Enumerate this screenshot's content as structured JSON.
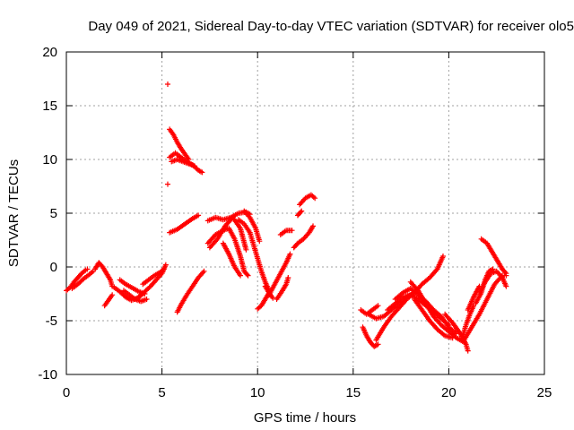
{
  "chart_data": {
    "type": "scatter",
    "title": "Day 049 of 2021, Sidereal Day-to-day VTEC variation (SDTVAR) for receiver olo5",
    "xlabel": "GPS time / hours",
    "ylabel": "SDTVAR / TECUs",
    "xlim": [
      0,
      25
    ],
    "ylim": [
      -10,
      20
    ],
    "xticks": [
      "0",
      "5",
      "10",
      "15",
      "20",
      "25"
    ],
    "yticks": [
      "-10",
      "-5",
      "0",
      "5",
      "10",
      "15",
      "20"
    ],
    "grid": true,
    "marker": "+",
    "color": "#ff0000",
    "segments": [
      [
        [
          0.0,
          -2.2
        ],
        [
          0.2,
          -1.9
        ],
        [
          0.4,
          -1.4
        ],
        [
          0.6,
          -1.0
        ],
        [
          0.8,
          -0.6
        ],
        [
          1.0,
          -0.3
        ],
        [
          1.1,
          -0.2
        ]
      ],
      [
        [
          0.3,
          -2.0
        ],
        [
          0.6,
          -1.6
        ],
        [
          0.9,
          -1.1
        ],
        [
          1.2,
          -0.7
        ],
        [
          1.4,
          -0.4
        ]
      ],
      [
        [
          1.5,
          -0.2
        ],
        [
          1.7,
          0.4
        ],
        [
          1.9,
          0.0
        ],
        [
          2.1,
          -0.6
        ],
        [
          2.3,
          -1.2
        ],
        [
          2.4,
          -1.8
        ]
      ],
      [
        [
          2.0,
          -3.6
        ],
        [
          2.2,
          -3.1
        ],
        [
          2.4,
          -2.6
        ]
      ],
      [
        [
          2.5,
          -1.9
        ],
        [
          2.8,
          -2.3
        ],
        [
          3.1,
          -2.8
        ],
        [
          3.4,
          -3.1
        ],
        [
          3.7,
          -2.9
        ],
        [
          4.0,
          -2.5
        ]
      ],
      [
        [
          2.8,
          -1.2
        ],
        [
          3.1,
          -1.6
        ],
        [
          3.5,
          -2.0
        ],
        [
          3.8,
          -2.3
        ],
        [
          4.1,
          -2.5
        ]
      ],
      [
        [
          3.0,
          -2.2
        ],
        [
          3.3,
          -2.6
        ],
        [
          3.6,
          -3.0
        ],
        [
          3.9,
          -3.2
        ],
        [
          4.2,
          -3.0
        ]
      ],
      [
        [
          3.8,
          -2.8
        ],
        [
          4.1,
          -2.3
        ],
        [
          4.4,
          -1.8
        ],
        [
          4.7,
          -1.2
        ],
        [
          5.0,
          -0.6
        ],
        [
          5.2,
          0.2
        ]
      ],
      [
        [
          4.0,
          -1.6
        ],
        [
          4.3,
          -1.2
        ],
        [
          4.6,
          -0.8
        ],
        [
          4.9,
          -0.5
        ],
        [
          5.1,
          -0.2
        ]
      ],
      [
        [
          5.3,
          17.0
        ]
      ],
      [
        [
          5.3,
          7.7
        ]
      ],
      [
        [
          5.4,
          12.8
        ],
        [
          5.6,
          12.3
        ],
        [
          5.8,
          11.6
        ],
        [
          6.0,
          11.0
        ],
        [
          6.2,
          10.5
        ],
        [
          6.4,
          10.0
        ]
      ],
      [
        [
          5.4,
          10.2
        ],
        [
          5.7,
          10.6
        ],
        [
          6.0,
          10.2
        ],
        [
          6.3,
          9.8
        ],
        [
          6.6,
          9.5
        ],
        [
          6.9,
          9.0
        ],
        [
          7.1,
          8.8
        ]
      ],
      [
        [
          5.5,
          9.8
        ],
        [
          5.8,
          10.0
        ],
        [
          6.1,
          9.8
        ],
        [
          6.4,
          9.6
        ],
        [
          6.7,
          9.4
        ]
      ],
      [
        [
          5.4,
          3.2
        ],
        [
          5.8,
          3.5
        ],
        [
          6.2,
          4.0
        ],
        [
          6.6,
          4.5
        ],
        [
          6.9,
          4.8
        ]
      ],
      [
        [
          5.8,
          -4.2
        ],
        [
          6.0,
          -3.5
        ],
        [
          6.3,
          -2.6
        ],
        [
          6.6,
          -1.8
        ],
        [
          6.9,
          -1.0
        ],
        [
          7.2,
          -0.4
        ]
      ],
      [
        [
          7.4,
          4.3
        ],
        [
          7.8,
          4.6
        ],
        [
          8.2,
          4.4
        ],
        [
          8.6,
          4.6
        ],
        [
          9.0,
          5.0
        ],
        [
          9.4,
          5.1
        ],
        [
          9.6,
          4.9
        ]
      ],
      [
        [
          7.4,
          2.2
        ],
        [
          7.8,
          3.0
        ],
        [
          8.2,
          3.4
        ],
        [
          8.5,
          3.6
        ],
        [
          8.8,
          2.6
        ],
        [
          9.1,
          1.0
        ],
        [
          9.3,
          -0.4
        ],
        [
          9.5,
          -0.8
        ]
      ],
      [
        [
          7.5,
          1.8
        ],
        [
          7.9,
          2.6
        ],
        [
          8.3,
          3.8
        ],
        [
          8.7,
          4.6
        ],
        [
          9.1,
          3.6
        ],
        [
          9.4,
          1.6
        ]
      ],
      [
        [
          8.2,
          2.2
        ],
        [
          8.5,
          1.2
        ],
        [
          8.8,
          0.0
        ],
        [
          9.1,
          -0.8
        ]
      ],
      [
        [
          9.0,
          4.4
        ],
        [
          9.3,
          4.0
        ],
        [
          9.6,
          3.2
        ],
        [
          9.8,
          2.0
        ],
        [
          10.0,
          0.8
        ],
        [
          10.2,
          -0.4
        ],
        [
          10.4,
          -1.4
        ],
        [
          10.6,
          -2.2
        ]
      ],
      [
        [
          9.3,
          5.2
        ],
        [
          9.6,
          4.6
        ],
        [
          9.9,
          3.6
        ],
        [
          10.1,
          2.4
        ]
      ],
      [
        [
          10.0,
          -3.9
        ],
        [
          10.2,
          -3.6
        ],
        [
          10.4,
          -3.0
        ],
        [
          10.6,
          -2.4
        ]
      ],
      [
        [
          10.4,
          -1.8
        ],
        [
          10.6,
          -2.4
        ],
        [
          10.8,
          -2.9
        ]
      ],
      [
        [
          10.6,
          -2.6
        ],
        [
          10.9,
          -1.6
        ],
        [
          11.2,
          -0.6
        ],
        [
          11.5,
          0.4
        ],
        [
          11.7,
          1.2
        ]
      ],
      [
        [
          11.0,
          -3.0
        ],
        [
          11.3,
          -2.2
        ],
        [
          11.5,
          -1.6
        ],
        [
          11.6,
          -1.0
        ]
      ],
      [
        [
          11.2,
          3.0
        ],
        [
          11.5,
          3.4
        ],
        [
          11.8,
          3.4
        ]
      ],
      [
        [
          11.9,
          1.8
        ],
        [
          12.1,
          2.2
        ],
        [
          12.4,
          2.6
        ],
        [
          12.7,
          3.2
        ],
        [
          12.9,
          3.8
        ]
      ],
      [
        [
          12.2,
          5.8
        ],
        [
          12.5,
          6.4
        ],
        [
          12.8,
          6.7
        ],
        [
          13.0,
          6.4
        ]
      ],
      [
        [
          12.1,
          4.8
        ],
        [
          12.3,
          5.2
        ]
      ],
      [
        [
          15.4,
          -4.0
        ],
        [
          15.7,
          -4.4
        ],
        [
          16.0,
          -4.0
        ],
        [
          16.3,
          -3.6
        ]
      ],
      [
        [
          15.5,
          -5.6
        ],
        [
          15.7,
          -6.4
        ],
        [
          15.9,
          -7.0
        ],
        [
          16.1,
          -7.4
        ],
        [
          16.3,
          -7.2
        ]
      ],
      [
        [
          15.8,
          -4.4
        ],
        [
          16.2,
          -4.8
        ],
        [
          16.6,
          -4.6
        ],
        [
          17.0,
          -4.0
        ],
        [
          17.4,
          -3.4
        ],
        [
          17.8,
          -2.8
        ],
        [
          18.2,
          -2.4
        ]
      ],
      [
        [
          16.2,
          -6.8
        ],
        [
          16.6,
          -5.6
        ],
        [
          17.0,
          -4.6
        ],
        [
          17.4,
          -3.8
        ],
        [
          17.8,
          -3.0
        ],
        [
          18.2,
          -2.4
        ],
        [
          18.6,
          -1.6
        ],
        [
          19.0,
          -1.0
        ],
        [
          19.4,
          -0.2
        ],
        [
          19.7,
          1.0
        ]
      ],
      [
        [
          16.8,
          -4.0
        ],
        [
          17.2,
          -3.4
        ],
        [
          17.6,
          -2.8
        ],
        [
          18.0,
          -2.6
        ],
        [
          18.4,
          -3.0
        ],
        [
          18.8,
          -3.6
        ],
        [
          19.2,
          -4.2
        ],
        [
          19.6,
          -4.8
        ],
        [
          20.0,
          -5.4
        ]
      ],
      [
        [
          17.2,
          -3.0
        ],
        [
          17.6,
          -2.4
        ],
        [
          18.0,
          -2.0
        ],
        [
          18.4,
          -2.6
        ],
        [
          18.8,
          -3.2
        ],
        [
          19.2,
          -4.0
        ],
        [
          19.6,
          -4.6
        ],
        [
          20.0,
          -5.6
        ],
        [
          20.4,
          -6.2
        ]
      ],
      [
        [
          18.0,
          -1.4
        ],
        [
          18.4,
          -2.2
        ],
        [
          18.8,
          -3.4
        ],
        [
          19.2,
          -4.6
        ],
        [
          19.6,
          -5.4
        ],
        [
          20.0,
          -6.0
        ],
        [
          20.4,
          -6.6
        ],
        [
          20.8,
          -7.0
        ]
      ],
      [
        [
          18.2,
          -3.0
        ],
        [
          18.6,
          -4.0
        ],
        [
          19.0,
          -5.0
        ],
        [
          19.4,
          -5.8
        ],
        [
          19.8,
          -6.4
        ],
        [
          20.2,
          -6.6
        ]
      ],
      [
        [
          19.8,
          -4.4
        ],
        [
          20.2,
          -5.2
        ],
        [
          20.6,
          -6.2
        ],
        [
          20.9,
          -7.2
        ],
        [
          21.0,
          -7.8
        ]
      ],
      [
        [
          20.7,
          -6.6
        ],
        [
          20.9,
          -5.4
        ],
        [
          21.1,
          -4.4
        ],
        [
          21.3,
          -3.6
        ]
      ],
      [
        [
          21.0,
          -4.0
        ],
        [
          21.3,
          -2.8
        ],
        [
          21.6,
          -1.8
        ]
      ],
      [
        [
          20.8,
          -6.8
        ],
        [
          21.2,
          -5.6
        ],
        [
          21.6,
          -4.4
        ],
        [
          22.0,
          -3.0
        ],
        [
          22.4,
          -1.6
        ],
        [
          22.8,
          -0.8
        ],
        [
          23.0,
          -0.8
        ]
      ],
      [
        [
          21.4,
          -3.4
        ],
        [
          21.7,
          -2.4
        ],
        [
          21.9,
          -1.2
        ],
        [
          22.1,
          -0.4
        ],
        [
          22.3,
          -0.2
        ]
      ],
      [
        [
          21.7,
          2.6
        ],
        [
          22.0,
          2.2
        ],
        [
          22.2,
          1.6
        ],
        [
          22.4,
          1.0
        ],
        [
          22.6,
          0.4
        ],
        [
          22.8,
          -0.2
        ],
        [
          23.0,
          -0.6
        ]
      ],
      [
        [
          21.6,
          -2.4
        ],
        [
          21.9,
          -1.4
        ],
        [
          22.2,
          -0.6
        ],
        [
          22.5,
          -0.4
        ],
        [
          22.8,
          -1.0
        ],
        [
          23.0,
          -1.8
        ]
      ]
    ]
  }
}
